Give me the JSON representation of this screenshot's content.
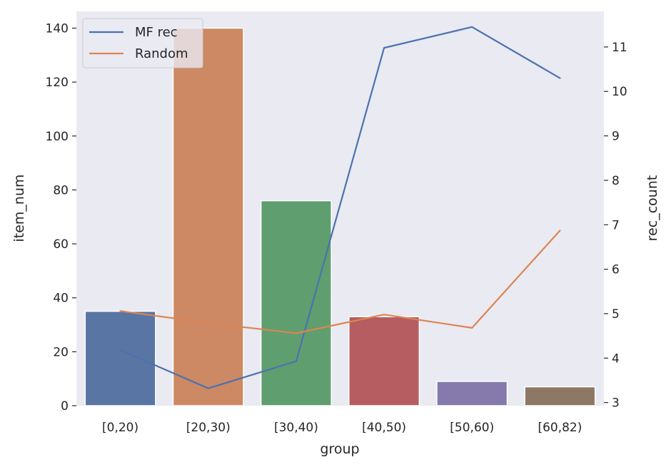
{
  "chart_data": {
    "type": "bar",
    "xlabel": "group",
    "ylabel": "item_num",
    "y2label": "rec_count",
    "categories": [
      "[0,20)",
      "[20,30)",
      "[30,40)",
      "[40,50)",
      "[50,60)",
      "[60,82)"
    ],
    "bars": {
      "values": [
        35,
        140,
        76,
        33,
        9,
        7
      ],
      "colors": [
        "#5975a4",
        "#cc8963",
        "#5f9e6e",
        "#b55d60",
        "#857aab",
        "#8d7866"
      ]
    },
    "ylim": [
      0,
      146.2
    ],
    "yticks": [
      0,
      20,
      40,
      60,
      80,
      100,
      120,
      140
    ],
    "y2lim": [
      2.93,
      11.8
    ],
    "y2ticks": [
      3,
      4,
      5,
      6,
      7,
      8,
      9,
      10,
      11
    ],
    "series": [
      {
        "name": "MF rec",
        "axis": "right",
        "color": "#4c72b0",
        "values": [
          4.18,
          3.32,
          3.93,
          10.98,
          11.45,
          10.3
        ]
      },
      {
        "name": "Random",
        "axis": "right",
        "color": "#dd8452",
        "values": [
          5.06,
          4.79,
          4.56,
          4.98,
          4.68,
          6.87
        ]
      }
    ],
    "legend_position": "top-left",
    "grid": false,
    "background": "#eaeaf2"
  }
}
